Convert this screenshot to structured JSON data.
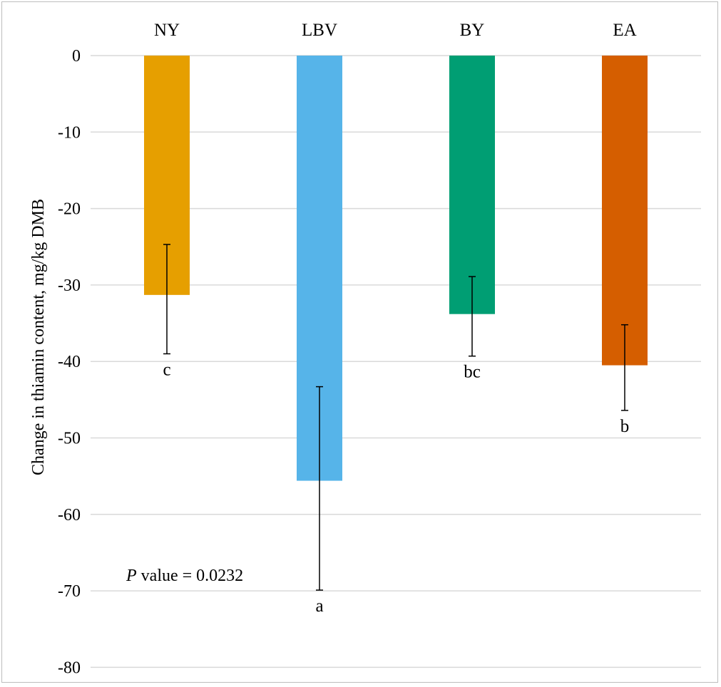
{
  "chart_data": {
    "type": "bar",
    "categories": [
      "NY",
      "LBV",
      "BY",
      "EA"
    ],
    "values": [
      -31.3,
      -55.6,
      -33.8,
      -40.5
    ],
    "error_high": [
      -24.7,
      -43.3,
      -28.9,
      -35.2
    ],
    "error_low": [
      -39.0,
      -69.9,
      -39.3,
      -46.4
    ],
    "significance_letters": [
      "c",
      "a",
      "bc",
      "b"
    ],
    "colors": [
      "#e69f00",
      "#56b4e9",
      "#009e73",
      "#d55e00"
    ],
    "title": "",
    "xlabel": "",
    "ylabel": "Change in thiamin content, mg/kg DMB",
    "ylim": [
      -80,
      0
    ],
    "yticks": [
      0,
      -10,
      -20,
      -30,
      -40,
      -50,
      -60,
      -70,
      -80
    ],
    "grid": true,
    "legend": "none",
    "category_axis_position": "top",
    "annotation": {
      "p_italic": "P",
      "p_text": " value = 0.0232"
    }
  }
}
